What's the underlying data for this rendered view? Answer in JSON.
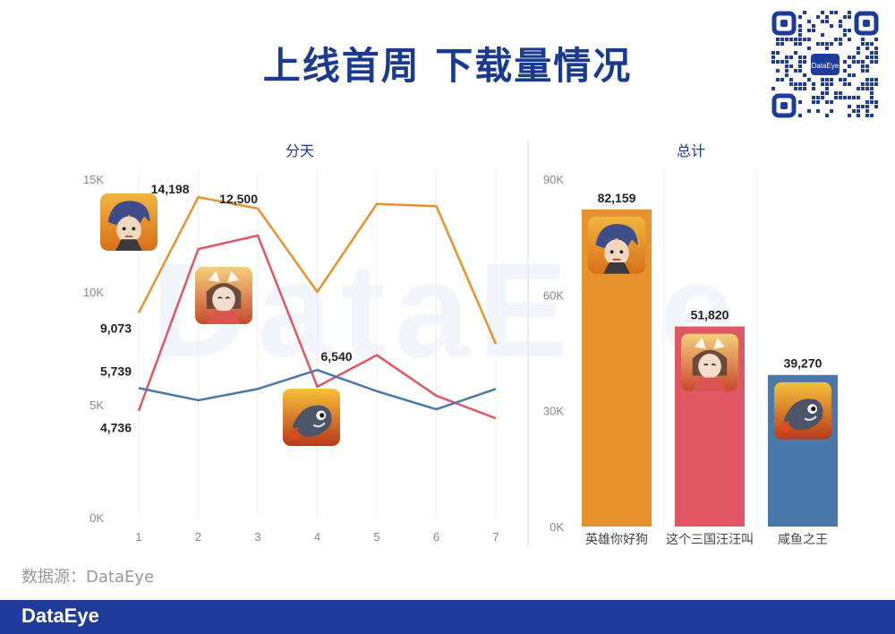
{
  "page": {
    "title": "上线首周 下载量情况",
    "source": "数据源：DataEye",
    "footer_logo": "DataEye",
    "watermark": "DataEye",
    "qr_logo": "DataEye"
  },
  "colors": {
    "orange": "#e8922e",
    "red": "#e05663",
    "blue": "#4a78a8",
    "title": "#1a3a8f",
    "footer": "#1f3b99"
  },
  "chart_data": [
    {
      "type": "line",
      "title": "分天",
      "x": [
        1,
        2,
        3,
        4,
        5,
        6,
        7
      ],
      "ylim": [
        0,
        15000
      ],
      "yticks": [
        "0K",
        "5K",
        "10K",
        "15K"
      ],
      "grid": true,
      "series": [
        {
          "color": "#e8922e",
          "icon": "game-avatar-blue-hair",
          "values": [
            9073,
            14198,
            13700,
            10000,
            13900,
            13800,
            7700
          ]
        },
        {
          "color": "#e05663",
          "icon": "game-avatar-cat-ears",
          "values": [
            4736,
            11900,
            12500,
            5800,
            7200,
            5400,
            4400
          ]
        },
        {
          "color": "#4a78a8",
          "icon": "game-avatar-fish",
          "values": [
            5739,
            5200,
            5700,
            6540,
            5600,
            4800,
            5700
          ]
        }
      ],
      "data_labels": [
        {
          "series": 0,
          "index": 0,
          "text": "9,073"
        },
        {
          "series": 0,
          "index": 1,
          "text": "14,198"
        },
        {
          "series": 1,
          "index": 0,
          "text": "4,736"
        },
        {
          "series": 1,
          "index": 2,
          "text": "12,500"
        },
        {
          "series": 2,
          "index": 0,
          "text": "5,739"
        },
        {
          "series": 2,
          "index": 3,
          "text": "6,540"
        }
      ]
    },
    {
      "type": "bar",
      "title": "总计",
      "categories": [
        "英雄你好狗",
        "这个三国汪汪叫",
        "咸鱼之王"
      ],
      "values": [
        82159,
        51820,
        39270
      ],
      "value_labels": [
        "82,159",
        "51,820",
        "39,270"
      ],
      "colors": [
        "#e8922e",
        "#e05663",
        "#4a78a8"
      ],
      "icons": [
        "game-avatar-blue-hair",
        "game-avatar-cat-ears",
        "game-avatar-fish"
      ],
      "ylim": [
        0,
        90000
      ],
      "yticks": [
        "0K",
        "30K",
        "60K",
        "90K"
      ],
      "grid": true
    }
  ]
}
